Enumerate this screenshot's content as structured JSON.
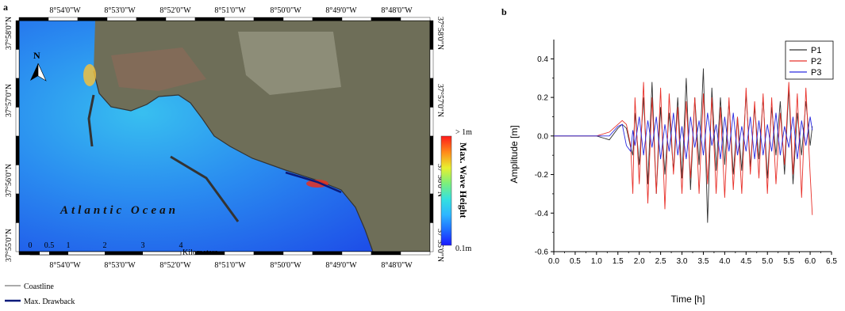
{
  "panel_a": {
    "letter": "a",
    "lon_labels": [
      "8°54'0\"W",
      "8°53'0\"W",
      "8°52'0\"W",
      "8°51'0\"W",
      "8°50'0\"W",
      "8°49'0\"W",
      "8°48'0\"W"
    ],
    "lat_labels": [
      "37°58'0\"N",
      "37°57'0\"N",
      "37°56'0\"N",
      "37°55'0\"N"
    ],
    "north_label": "N",
    "ocean_label": "Atlantic Ocean",
    "scalebar": {
      "ticks": [
        "0",
        "0.5",
        "1",
        "2",
        "3",
        "4"
      ],
      "unit": "Kilometers"
    },
    "colorbar": {
      "title": "Max. Wave Height",
      "max_label": "> 1m",
      "min_label": "0.1m",
      "colors": [
        "#1a1aff",
        "#1f6dff",
        "#2db6ff",
        "#34e0e0",
        "#7ef07a",
        "#e8f030",
        "#ff8c1a",
        "#ff1a1a"
      ]
    },
    "legend": {
      "coastline": "Coastline",
      "drawback": "Max. Drawback"
    },
    "colors": {
      "coast": "#555555",
      "drawback": "#0a1a7a"
    }
  },
  "panel_b": {
    "letter": "b"
  },
  "chart_data": {
    "type": "line",
    "xlabel": "Time [h]",
    "ylabel": "Amplitude [m]",
    "xlim": [
      0.0,
      6.5
    ],
    "ylim": [
      -0.6,
      0.5
    ],
    "xticks": [
      "0.0",
      "0.5",
      "1.0",
      "1.5",
      "2.0",
      "2.5",
      "3.0",
      "3.5",
      "4.0",
      "4.5",
      "5.0",
      "5.5",
      "6.0",
      "6.5"
    ],
    "yticks": [
      "-0.6",
      "-0.4",
      "-0.2",
      "0.0",
      "0.2",
      "0.4"
    ],
    "legend_position": "top-right",
    "x": [
      0.0,
      0.5,
      1.0,
      1.3,
      1.5,
      1.6,
      1.7,
      1.8,
      1.85,
      1.9,
      2.0,
      2.1,
      2.2,
      2.3,
      2.4,
      2.5,
      2.6,
      2.7,
      2.8,
      2.9,
      3.0,
      3.1,
      3.2,
      3.3,
      3.4,
      3.5,
      3.6,
      3.7,
      3.8,
      3.9,
      4.0,
      4.1,
      4.2,
      4.3,
      4.4,
      4.5,
      4.6,
      4.7,
      4.8,
      4.9,
      5.0,
      5.1,
      5.2,
      5.3,
      5.4,
      5.5,
      5.6,
      5.7,
      5.8,
      5.9,
      6.0,
      6.05
    ],
    "series": [
      {
        "name": "P1",
        "color": "#333333",
        "values": [
          0.0,
          0.0,
          0.0,
          -0.02,
          0.04,
          0.06,
          0.04,
          -0.06,
          -0.1,
          0.12,
          -0.15,
          0.2,
          -0.25,
          0.28,
          -0.3,
          0.15,
          -0.2,
          0.12,
          -0.18,
          0.2,
          -0.22,
          0.3,
          -0.28,
          0.2,
          -0.15,
          0.35,
          -0.45,
          0.25,
          -0.18,
          0.2,
          -0.15,
          0.18,
          -0.2,
          0.1,
          -0.18,
          0.22,
          -0.16,
          0.15,
          -0.12,
          0.2,
          -0.22,
          0.15,
          -0.1,
          0.18,
          -0.2,
          0.25,
          -0.25,
          0.12,
          -0.1,
          0.18,
          -0.05,
          0.05
        ]
      },
      {
        "name": "P2",
        "color": "#e8312a",
        "values": [
          0.0,
          0.0,
          0.0,
          0.02,
          0.06,
          0.08,
          0.06,
          -0.05,
          -0.3,
          0.2,
          -0.25,
          0.28,
          -0.35,
          0.2,
          -0.3,
          0.25,
          -0.38,
          0.22,
          -0.2,
          0.15,
          -0.3,
          0.18,
          -0.22,
          0.2,
          -0.3,
          0.22,
          -0.25,
          0.2,
          -0.3,
          0.15,
          -0.32,
          0.2,
          -0.28,
          0.1,
          -0.3,
          0.25,
          -0.2,
          0.18,
          -0.22,
          0.22,
          -0.3,
          0.2,
          -0.25,
          0.12,
          -0.15,
          0.28,
          -0.2,
          0.22,
          -0.32,
          0.25,
          -0.2,
          -0.41
        ]
      },
      {
        "name": "P3",
        "color": "#2a2ae0",
        "values": [
          0.0,
          0.0,
          0.0,
          0.0,
          0.05,
          0.06,
          -0.05,
          -0.08,
          0.03,
          -0.05,
          0.1,
          -0.1,
          0.08,
          -0.06,
          0.1,
          -0.12,
          0.06,
          -0.08,
          0.12,
          -0.1,
          0.05,
          -0.12,
          0.1,
          -0.06,
          0.08,
          -0.1,
          0.12,
          -0.05,
          0.06,
          -0.12,
          0.1,
          -0.08,
          0.12,
          -0.1,
          0.05,
          -0.08,
          0.1,
          -0.12,
          0.08,
          -0.1,
          0.06,
          -0.08,
          0.12,
          -0.1,
          0.05,
          -0.06,
          0.1,
          -0.12,
          0.08,
          -0.05,
          0.1,
          0.03
        ]
      }
    ]
  }
}
